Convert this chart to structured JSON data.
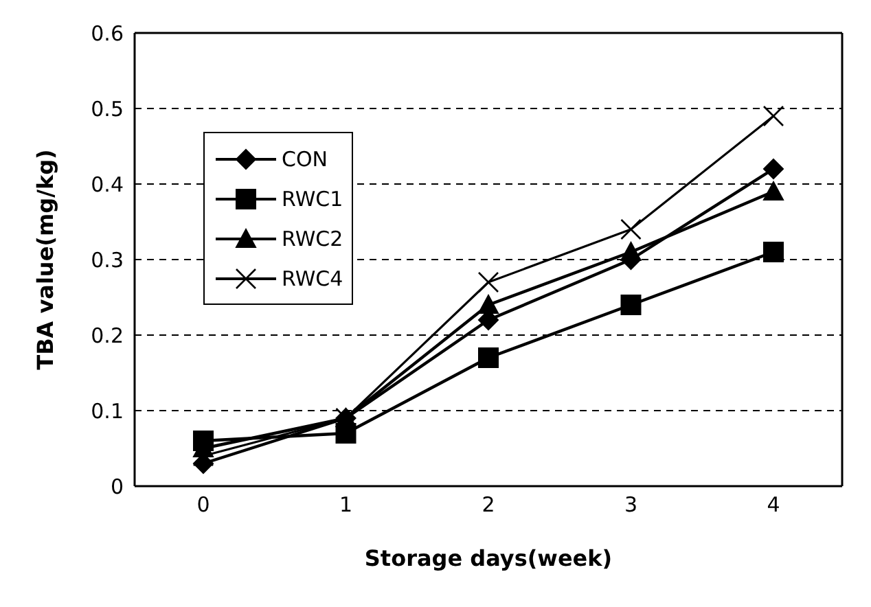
{
  "chart_data": {
    "type": "line",
    "xlabel": "Storage days(week)",
    "ylabel": "TBA value(mg/kg)",
    "categories": [
      "0",
      "1",
      "2",
      "3",
      "4"
    ],
    "series": [
      {
        "name": "CON",
        "color": "#000000",
        "marker": "diamond",
        "values": [
          0.03,
          0.09,
          0.22,
          0.3,
          0.42
        ]
      },
      {
        "name": "RWC1",
        "color": "#000000",
        "marker": "square",
        "values": [
          0.06,
          0.07,
          0.17,
          0.24,
          0.31
        ]
      },
      {
        "name": "RWC2",
        "color": "#000000",
        "marker": "triangle",
        "values": [
          0.05,
          0.09,
          0.24,
          0.31,
          0.39
        ]
      },
      {
        "name": "RWC4",
        "color": "#000000",
        "marker": "cross",
        "values": [
          0.04,
          0.09,
          0.27,
          0.34,
          0.49
        ]
      }
    ],
    "ylim": [
      0,
      0.6
    ],
    "yticks": [
      0,
      0.1,
      0.2,
      0.3,
      0.4,
      0.5,
      0.6
    ],
    "grid": "y",
    "legend": "top left",
    "line_style": "solid"
  }
}
